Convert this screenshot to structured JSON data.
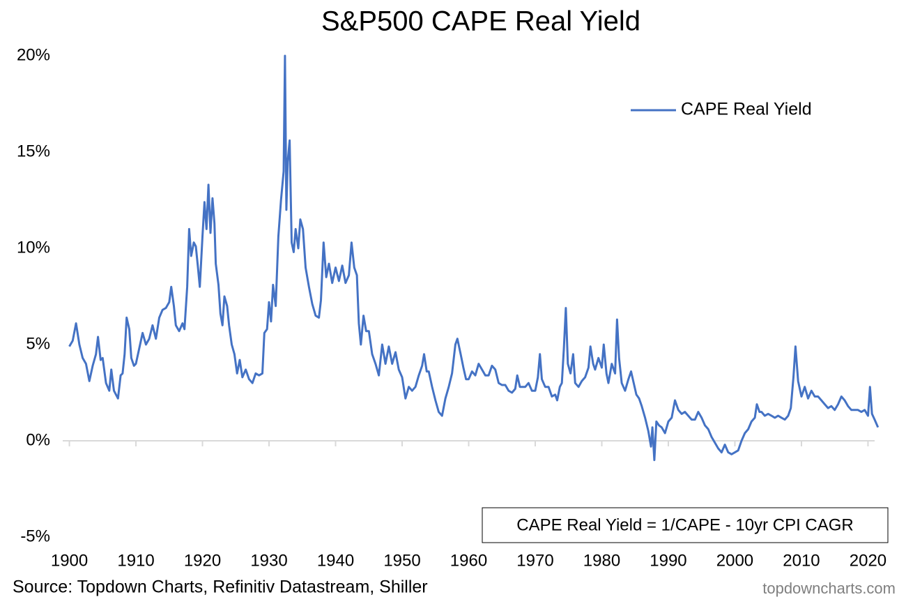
{
  "chart_data": {
    "type": "line",
    "title": "S&P500 CAPE Real Yield",
    "annotation": "CAPE Real Yield = 1/CAPE - 10yr CPI CAGR",
    "source": "Source: Topdown Charts, Refinitiv Datastream, Shiller",
    "watermark": "topdowncharts.com",
    "legend": "upper right",
    "xlim": [
      1899,
      2021
    ],
    "xticks": [
      1900,
      1910,
      1920,
      1930,
      1940,
      1950,
      1960,
      1970,
      1980,
      1990,
      2000,
      2010,
      2020
    ],
    "ylim": [
      -5,
      20
    ],
    "yticks": [
      {
        "value": -5,
        "label": "-5%"
      },
      {
        "value": 0,
        "label": "0%"
      },
      {
        "value": 5,
        "label": "5%"
      },
      {
        "value": 10,
        "label": "10%"
      },
      {
        "value": 15,
        "label": "15%"
      },
      {
        "value": 20,
        "label": "20%"
      }
    ],
    "x": [
      1900,
      1900.5,
      1901,
      1901.5,
      1902,
      1902.5,
      1903,
      1903.5,
      1904,
      1904.3,
      1904.7,
      1905,
      1905.5,
      1906,
      1906.3,
      1906.7,
      1907.3,
      1907.7,
      1908,
      1908.3,
      1908.6,
      1909,
      1909.3,
      1909.7,
      1910,
      1910.5,
      1911,
      1911.5,
      1912,
      1912.5,
      1913,
      1913.5,
      1914,
      1914.5,
      1915,
      1915.3,
      1915.7,
      1916,
      1916.5,
      1917,
      1917.3,
      1917.7,
      1918,
      1918.3,
      1918.7,
      1919,
      1919.3,
      1919.6,
      1920,
      1920.3,
      1920.6,
      1920.9,
      1921.2,
      1921.5,
      1921.8,
      1922,
      1922.4,
      1922.7,
      1923,
      1923.3,
      1923.7,
      1924,
      1924.4,
      1924.8,
      1925.2,
      1925.6,
      1926,
      1926.5,
      1927,
      1927.5,
      1928,
      1928.5,
      1929,
      1929.3,
      1929.7,
      1930,
      1930.3,
      1930.6,
      1931,
      1931.4,
      1931.8,
      1932.2,
      1932.4,
      1932.6,
      1932.8,
      1933.1,
      1933.4,
      1933.7,
      1934,
      1934.4,
      1934.7,
      1935.1,
      1935.5,
      1936,
      1936.5,
      1937,
      1937.5,
      1937.8,
      1938.2,
      1938.6,
      1939,
      1939.5,
      1940,
      1940.5,
      1941,
      1941.5,
      1942,
      1942.4,
      1942.8,
      1943.2,
      1943.5,
      1943.8,
      1944.2,
      1944.6,
      1945,
      1945.5,
      1946,
      1946.5,
      1947,
      1947.5,
      1948,
      1948.5,
      1949,
      1949.5,
      1950,
      1950.5,
      1951,
      1951.5,
      1952,
      1952.5,
      1953,
      1953.3,
      1953.7,
      1954,
      1954.5,
      1955,
      1955.5,
      1956,
      1956.5,
      1957,
      1957.5,
      1958,
      1958.3,
      1958.8,
      1959.2,
      1959.6,
      1960,
      1960.5,
      1961,
      1961.5,
      1962,
      1962.5,
      1963,
      1963.5,
      1964,
      1964.5,
      1965,
      1965.5,
      1966,
      1966.5,
      1967,
      1967.3,
      1967.7,
      1968,
      1968.5,
      1969,
      1969.5,
      1970,
      1970.4,
      1970.7,
      1971,
      1971.5,
      1972,
      1972.5,
      1973,
      1973.3,
      1973.7,
      1974,
      1974.3,
      1974.6,
      1974.9,
      1975.3,
      1975.7,
      1976,
      1976.5,
      1977,
      1977.5,
      1978,
      1978.3,
      1978.7,
      1979,
      1979.5,
      1980,
      1980.3,
      1980.7,
      1981,
      1981.5,
      1982,
      1982.3,
      1982.6,
      1983,
      1983.5,
      1984,
      1984.4,
      1984.8,
      1985.2,
      1985.6,
      1986,
      1986.5,
      1987,
      1987.4,
      1987.6,
      1987.9,
      1988.2,
      1988.6,
      1989,
      1989.5,
      1990,
      1990.5,
      1991,
      1991.5,
      1992,
      1992.5,
      1993,
      1993.5,
      1994,
      1994.5,
      1995,
      1995.5,
      1996,
      1996.5,
      1997,
      1997.5,
      1998,
      1998.5,
      1999,
      1999.5,
      2000,
      2000.5,
      2001,
      2001.5,
      2002,
      2002.5,
      2003,
      2003.3,
      2003.7,
      2004,
      2004.5,
      2005,
      2005.5,
      2006,
      2006.5,
      2007,
      2007.5,
      2008,
      2008.4,
      2008.8,
      2009.1,
      2009.5,
      2010,
      2010.5,
      2011,
      2011.5,
      2012,
      2012.5,
      2013,
      2013.5,
      2014,
      2014.5,
      2015,
      2015.5,
      2016,
      2016.5,
      2017,
      2017.5,
      2018,
      2018.5,
      2019,
      2019.5,
      2020,
      2020.3,
      2020.6,
      2021,
      2021.5
    ],
    "series": [
      {
        "name": "CAPE Real Yield",
        "color": "#4472c4",
        "values": [
          4.9,
          5.2,
          6.1,
          5.0,
          4.3,
          4.0,
          3.1,
          3.9,
          4.5,
          5.4,
          4.2,
          4.3,
          3.0,
          2.6,
          3.7,
          2.6,
          2.2,
          3.4,
          3.5,
          4.5,
          6.4,
          5.8,
          4.3,
          3.9,
          4.0,
          4.8,
          5.6,
          5.0,
          5.3,
          6.0,
          5.3,
          6.4,
          6.8,
          6.9,
          7.2,
          8.0,
          7.0,
          6.0,
          5.7,
          6.1,
          5.8,
          8.0,
          11.0,
          9.6,
          10.3,
          10.1,
          9.1,
          8.0,
          10.6,
          12.4,
          11.0,
          13.3,
          10.8,
          12.6,
          11.3,
          9.2,
          8.1,
          6.6,
          6.0,
          7.5,
          7.0,
          6.0,
          5.0,
          4.5,
          3.5,
          4.2,
          3.3,
          3.7,
          3.2,
          3.0,
          3.5,
          3.4,
          3.5,
          5.6,
          5.8,
          7.2,
          6.2,
          8.1,
          7.0,
          10.6,
          12.5,
          14.0,
          20.0,
          12.0,
          14.5,
          15.6,
          10.3,
          9.8,
          11.0,
          10.0,
          11.5,
          11.0,
          9.0,
          8.0,
          7.1,
          6.5,
          6.4,
          7.3,
          10.3,
          8.5,
          9.2,
          8.2,
          9.0,
          8.3,
          9.1,
          8.2,
          8.6,
          10.3,
          9.0,
          8.6,
          6.1,
          5.0,
          6.5,
          5.7,
          5.7,
          4.5,
          4.0,
          3.4,
          5.0,
          4.0,
          4.9,
          4.0,
          4.6,
          3.7,
          3.3,
          2.2,
          2.8,
          2.6,
          2.8,
          3.4,
          3.9,
          4.5,
          3.6,
          3.6,
          2.8,
          2.1,
          1.5,
          1.3,
          2.2,
          2.8,
          3.5,
          5.0,
          5.3,
          4.5,
          3.8,
          3.2,
          3.2,
          3.6,
          3.4,
          4.0,
          3.7,
          3.4,
          3.4,
          3.9,
          3.7,
          3.0,
          2.9,
          2.9,
          2.6,
          2.5,
          2.7,
          3.4,
          2.8,
          2.8,
          2.8,
          3.0,
          2.6,
          2.6,
          3.3,
          4.5,
          3.2,
          2.8,
          2.8,
          2.3,
          2.4,
          2.1,
          2.8,
          3.0,
          4.8,
          6.9,
          4.0,
          3.5,
          4.5,
          3.0,
          2.8,
          3.1,
          3.3,
          3.8,
          4.9,
          4.0,
          3.7,
          4.3,
          3.8,
          5.0,
          3.5,
          3.0,
          4.0,
          3.5,
          6.3,
          4.3,
          3.0,
          2.6,
          3.2,
          3.6,
          3.0,
          2.4,
          2.2,
          1.8,
          1.2,
          0.5,
          -0.3,
          0.7,
          -1.0,
          1.0,
          0.8,
          0.7,
          0.4,
          1.0,
          1.2,
          2.1,
          1.6,
          1.4,
          1.5,
          1.3,
          1.1,
          1.1,
          1.5,
          1.2,
          0.8,
          0.6,
          0.2,
          -0.1,
          -0.4,
          -0.6,
          -0.2,
          -0.6,
          -0.7,
          -0.6,
          -0.5,
          0.0,
          0.4,
          0.6,
          1.0,
          1.2,
          1.9,
          1.5,
          1.5,
          1.3,
          1.4,
          1.3,
          1.2,
          1.3,
          1.2,
          1.1,
          1.3,
          1.7,
          3.3,
          4.9,
          3.1,
          2.3,
          2.8,
          2.2,
          2.6,
          2.3,
          2.3,
          2.1,
          1.9,
          1.7,
          1.8,
          1.6,
          1.9,
          2.3,
          2.1,
          1.8,
          1.6,
          1.6,
          1.6,
          1.5,
          1.6,
          1.3,
          2.8,
          1.4,
          1.1,
          0.7
        ]
      }
    ]
  }
}
